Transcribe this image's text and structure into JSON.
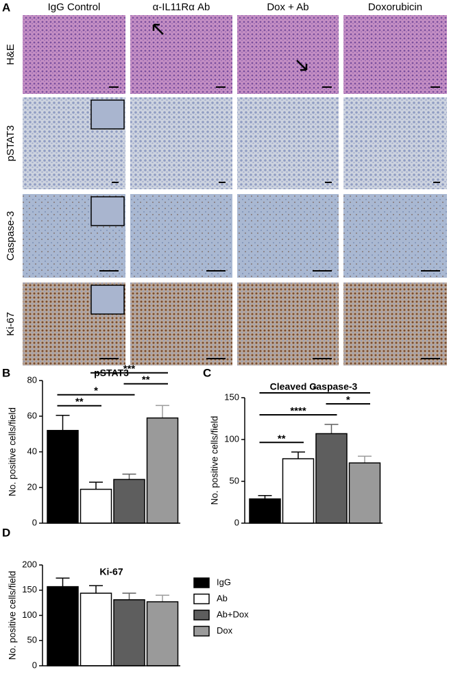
{
  "panel_labels": [
    "A",
    "B",
    "C",
    "D"
  ],
  "image_grid": {
    "columns": [
      "IgG Control",
      "α-IL11Rα Ab",
      "Dox + Ab",
      "Doxorubicin"
    ],
    "rows": [
      "H&E",
      "pSTAT3",
      "Caspase-3",
      "Ki-67"
    ]
  },
  "legend": [
    {
      "name": "IgG",
      "color": "#000000"
    },
    {
      "name": "Ab",
      "color": "#ffffff"
    },
    {
      "name": "Ab+Dox",
      "color": "#5e5e5e"
    },
    {
      "name": "Dox",
      "color": "#9a9a9a"
    }
  ],
  "chart_data": [
    {
      "type": "bar",
      "title": "pSTAT3",
      "ylabel": "No. positive cells/field",
      "categories": [
        null,
        null,
        null,
        null
      ],
      "values": [
        52,
        19,
        24.5,
        59
      ],
      "errors": [
        8.5,
        4,
        3,
        7
      ],
      "ylim": [
        0,
        80
      ],
      "yticks": [
        0,
        20,
        40,
        60,
        80
      ],
      "annotations": [
        {
          "from": 0,
          "to": 1,
          "label": "**"
        },
        {
          "from": 0,
          "to": 2,
          "label": "*"
        },
        {
          "from": 2,
          "to": 3,
          "label": "**"
        },
        {
          "from": 1,
          "to": 3,
          "label": "***"
        }
      ]
    },
    {
      "type": "bar",
      "title": "Cleaved Caspase-3",
      "ylabel": "No. positive cells/field",
      "categories": [
        null,
        null,
        null,
        null
      ],
      "values": [
        29,
        77,
        107,
        72
      ],
      "errors": [
        4,
        8,
        11,
        8
      ],
      "ylim": [
        0,
        150
      ],
      "yticks": [
        0,
        50,
        100,
        150
      ],
      "annotations": [
        {
          "from": 0,
          "to": 1,
          "label": "**"
        },
        {
          "from": 0,
          "to": 2,
          "label": "****"
        },
        {
          "from": 2,
          "to": 3,
          "label": "*"
        },
        {
          "from": 0,
          "to": 3,
          "label": "*"
        }
      ]
    },
    {
      "type": "bar",
      "title": "Ki-67",
      "ylabel": "No. positive cells/field",
      "categories": [
        null,
        null,
        null,
        null
      ],
      "values": [
        157,
        144,
        131,
        127
      ],
      "errors": [
        17,
        15,
        13,
        13
      ],
      "ylim": [
        0,
        200
      ],
      "yticks": [
        0,
        50,
        100,
        150,
        200
      ]
    }
  ]
}
